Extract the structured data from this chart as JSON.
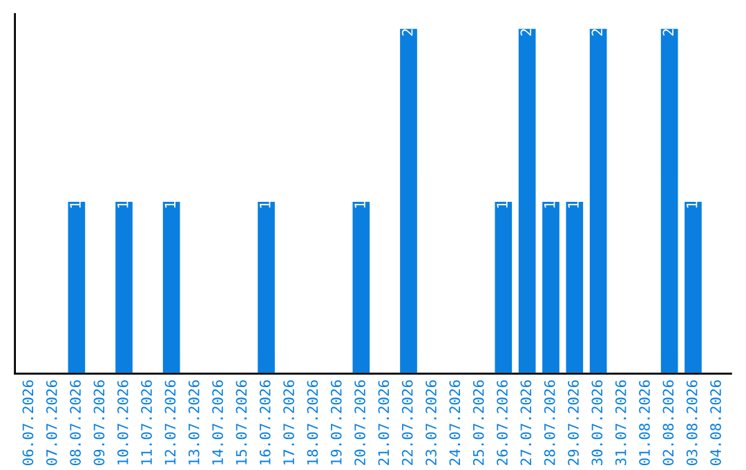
{
  "chart_data": {
    "type": "bar",
    "categories": [
      "06.07.2026",
      "07.07.2026",
      "08.07.2026",
      "09.07.2026",
      "10.07.2026",
      "11.07.2026",
      "12.07.2026",
      "13.07.2026",
      "14.07.2026",
      "15.07.2026",
      "16.07.2026",
      "17.07.2026",
      "18.07.2026",
      "19.07.2026",
      "20.07.2026",
      "21.07.2026",
      "22.07.2026",
      "23.07.2026",
      "24.07.2026",
      "25.07.2026",
      "26.07.2026",
      "27.07.2026",
      "28.07.2026",
      "29.07.2026",
      "30.07.2026",
      "31.07.2026",
      "01.08.2026",
      "02.08.2026",
      "03.08.2026",
      "04.08.2026"
    ],
    "values": [
      0,
      0,
      1,
      0,
      1,
      0,
      1,
      0,
      0,
      0,
      1,
      0,
      0,
      0,
      1,
      0,
      2,
      0,
      0,
      0,
      1,
      2,
      1,
      1,
      2,
      0,
      0,
      2,
      1,
      0
    ],
    "value_labels": [
      null,
      null,
      "1",
      null,
      "1",
      null,
      "1",
      null,
      null,
      null,
      "1",
      null,
      null,
      null,
      "1",
      null,
      "2",
      null,
      null,
      null,
      "1",
      "2",
      "1",
      "1",
      "2",
      null,
      null,
      "2",
      "1",
      null
    ],
    "color": "#0a7fe0",
    "ylim": [
      0,
      2.08
    ],
    "tick_labels": "x",
    "grid": false,
    "legend": false
  }
}
